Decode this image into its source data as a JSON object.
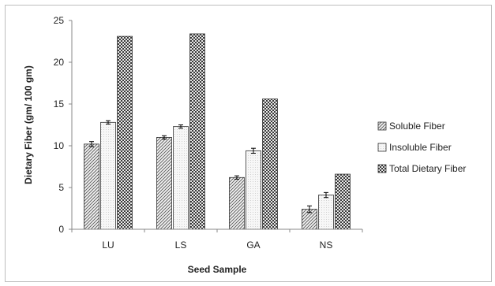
{
  "chart_data": {
    "type": "bar",
    "title": "",
    "xlabel": "Seed Sample",
    "ylabel": "Dietary Fiber (gm/ 100 gm)",
    "categories": [
      "LU",
      "LS",
      "GA",
      "NS"
    ],
    "ylim": [
      0,
      25
    ],
    "yticks": [
      0,
      5,
      10,
      15,
      20,
      25
    ],
    "grid": false,
    "legend_position": "right",
    "series": [
      {
        "name": "Soluble Fiber",
        "values": [
          10.2,
          11.0,
          6.2,
          2.4
        ],
        "errors": [
          0.3,
          0.2,
          0.2,
          0.4
        ],
        "pattern": "diagonal-hatch"
      },
      {
        "name": "Insoluble Fiber",
        "values": [
          12.8,
          12.3,
          9.4,
          4.1
        ],
        "errors": [
          0.2,
          0.2,
          0.3,
          0.3
        ],
        "pattern": "light-dotted"
      },
      {
        "name": "Total Dietary Fiber",
        "values": [
          23.1,
          23.4,
          15.6,
          6.6
        ],
        "errors": [
          0,
          0,
          0,
          0
        ],
        "pattern": "checkered"
      }
    ]
  }
}
